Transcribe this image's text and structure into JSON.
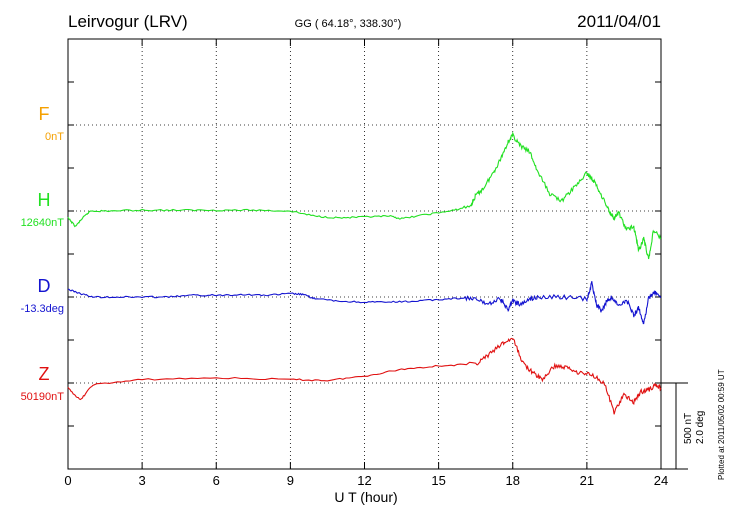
{
  "header": {
    "station": "Leirvogur (LRV)",
    "coords": "GG ( 64.18°, 338.30°)",
    "date": "2011/04/01"
  },
  "footer": {
    "plotted": "Plotted at 2011/05/02 00:59 UT",
    "scale_nt": "500 nT",
    "scale_deg": "2.0 deg"
  },
  "chart_data": {
    "type": "line",
    "title": "Leirvogur (LRV) 2011/04/01",
    "xlabel": "U T (hour)",
    "xlim": [
      0,
      24
    ],
    "xticks": [
      "0",
      "3",
      "6",
      "9",
      "12",
      "15",
      "18",
      "21",
      "24"
    ],
    "scale": {
      "nT_per_division": 500,
      "deg_per_division": 2.0
    },
    "series": [
      {
        "name": "F",
        "baseline_label": "0nT",
        "color": "#f5a000",
        "units": "nT",
        "x": [],
        "values": []
      },
      {
        "name": "H",
        "baseline_label": "12640nT",
        "color": "#22e022",
        "units": "nT",
        "x": [
          0,
          0.3,
          0.6,
          0.9,
          1.5,
          3,
          4.5,
          6,
          7.5,
          9,
          10,
          11,
          12,
          13,
          13.5,
          14.5,
          15.5,
          16.3,
          16.5,
          16.8,
          17.2,
          17.5,
          17.8,
          18.0,
          18.3,
          18.7,
          19.0,
          19.5,
          20.0,
          20.5,
          21.0,
          21.3,
          21.6,
          21.9,
          22.1,
          22.3,
          22.6,
          22.9,
          23.1,
          23.3,
          23.5,
          23.7,
          24
        ],
        "values": [
          -40,
          -90,
          -40,
          0,
          0,
          5,
          5,
          5,
          5,
          0,
          -30,
          -40,
          -35,
          -30,
          -45,
          -20,
          0,
          30,
          90,
          130,
          220,
          300,
          400,
          440,
          380,
          340,
          230,
          100,
          60,
          140,
          220,
          170,
          90,
          0,
          -40,
          -10,
          -110,
          -90,
          -230,
          -160,
          -280,
          -110,
          -160
        ]
      },
      {
        "name": "D",
        "baseline_label": "-13.3deg",
        "color": "#1414d0",
        "units": "deg",
        "x": [
          0,
          0.5,
          1,
          2,
          3,
          4,
          5,
          6,
          7,
          8,
          9,
          9.5,
          10,
          11,
          12,
          13,
          14,
          15,
          16,
          16.5,
          17,
          17.5,
          17.8,
          18,
          18.3,
          18.7,
          19,
          20,
          21,
          21.2,
          21.4,
          21.6,
          21.8,
          22,
          22.3,
          22.6,
          22.9,
          23.1,
          23.3,
          23.5,
          23.7,
          24
        ],
        "values": [
          0.18,
          0.08,
          0,
          0,
          0,
          0,
          0.04,
          0.04,
          0.06,
          0.04,
          0.08,
          0.06,
          -0.04,
          -0.1,
          -0.12,
          -0.12,
          -0.1,
          -0.06,
          -0.02,
          -0.06,
          -0.16,
          -0.04,
          -0.3,
          -0.08,
          -0.18,
          -0.04,
          0,
          0,
          -0.04,
          0.32,
          -0.18,
          -0.34,
          -0.1,
          0,
          -0.22,
          -0.06,
          -0.42,
          -0.24,
          -0.62,
          -0.04,
          0.12,
          0
        ]
      },
      {
        "name": "Z",
        "baseline_label": "50190nT",
        "color": "#e01010",
        "units": "nT",
        "x": [
          0,
          0.5,
          1,
          3,
          6,
          9,
          10.5,
          12,
          13.5,
          15,
          16.5,
          17,
          17.6,
          18.0,
          18.4,
          18.8,
          19.2,
          19.7,
          20.2,
          20.7,
          21.2,
          21.7,
          22.1,
          22.5,
          22.9,
          23.2,
          23.5,
          23.8,
          24
        ],
        "values": [
          -30,
          -100,
          -10,
          20,
          30,
          20,
          15,
          40,
          80,
          100,
          110,
          160,
          230,
          260,
          120,
          60,
          20,
          100,
          90,
          60,
          50,
          0,
          -170,
          -70,
          -110,
          -50,
          -40,
          -10,
          -30
        ]
      }
    ]
  }
}
